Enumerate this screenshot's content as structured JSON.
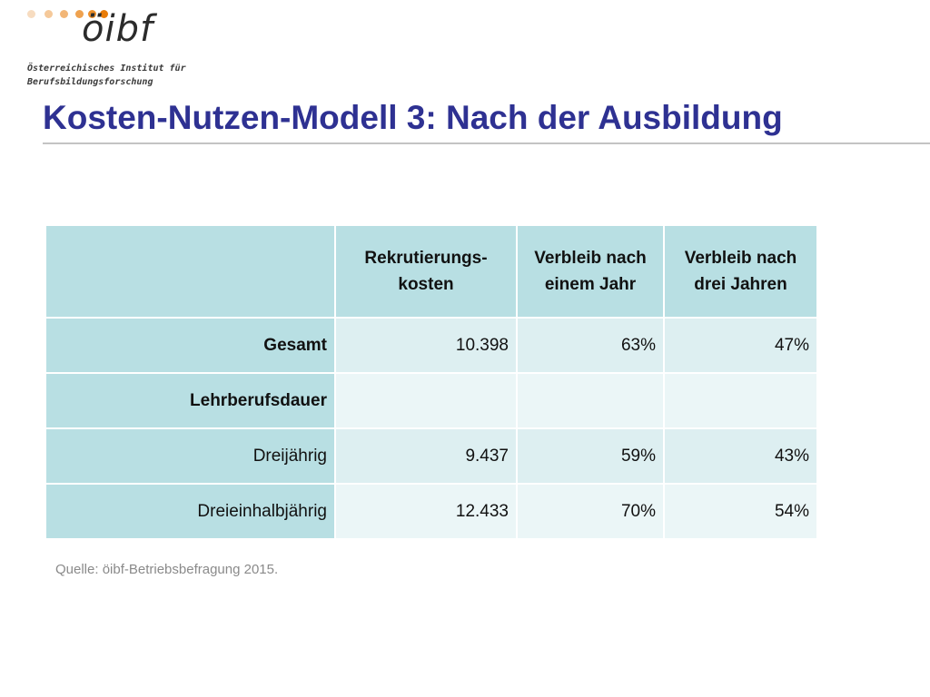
{
  "logo": {
    "wordmark": "öibf",
    "org_line1": "Österreichisches Institut für",
    "org_line2": "Berufsbildungsforschung",
    "dot_colors": [
      "#f7dcc0",
      "#f5c99a",
      "#f2b677",
      "#efa24f",
      "#ec8f2a",
      "#e97c08"
    ]
  },
  "slide": {
    "title": "Kosten-Nutzen-Modell 3: Nach der Ausbildung",
    "title_color": "#2e3192"
  },
  "table": {
    "headers": [
      {
        "line1": "",
        "line2": ""
      },
      {
        "line1": "Rekrutierungs-",
        "line2": "kosten"
      },
      {
        "line1": "Verbleib nach",
        "line2": "einem Jahr"
      },
      {
        "line1": "Verbleib nach",
        "line2": "drei Jahren"
      }
    ],
    "rows": [
      {
        "label": "Gesamt",
        "values": [
          "10.398",
          "63%",
          "47%"
        ]
      },
      {
        "label": "Lehrberufsdauer",
        "values": [
          "",
          "",
          ""
        ]
      },
      {
        "label": "Dreijährig",
        "values": [
          "9.437",
          "59%",
          "43%"
        ]
      },
      {
        "label": "Dreieinhalbjährig",
        "values": [
          "12.433",
          "70%",
          "54%"
        ]
      }
    ],
    "header_bg": "#b8dfe3",
    "cell_bg": "#ddeff1"
  },
  "source": "Quelle: öibf-Betriebsbefragung 2015."
}
